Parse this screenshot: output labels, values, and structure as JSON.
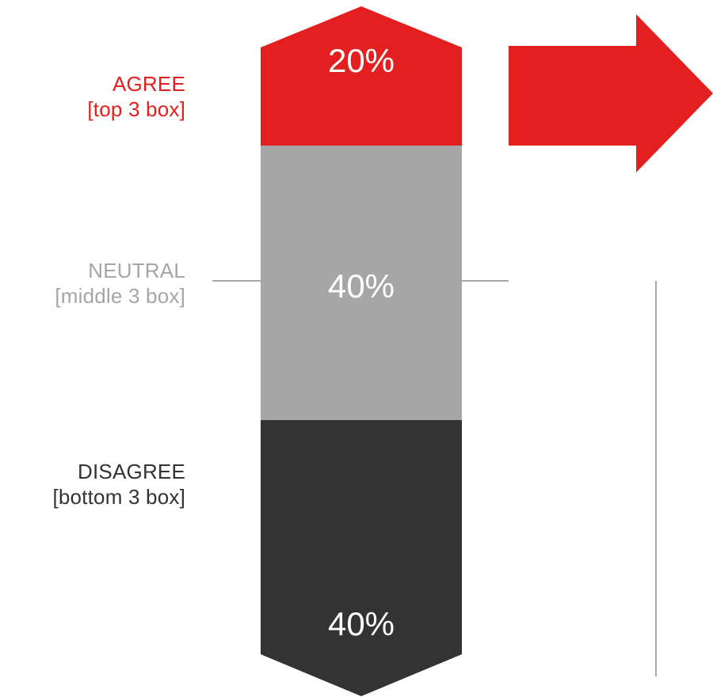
{
  "colors": {
    "agree": "#e31f1f",
    "neutral": "#a6a6a6",
    "disagree": "#333333",
    "guide_line": "#aaaaaa",
    "value_text": "#ffffff"
  },
  "chart_data": {
    "type": "bar",
    "orientation": "vertical-stacked",
    "segments": [
      {
        "name": "AGREE",
        "sublabel": "[top 3 box]",
        "value": 20,
        "display": "20%"
      },
      {
        "name": "NEUTRAL",
        "sublabel": "[middle 3 box]",
        "value": 40,
        "display": "40%"
      },
      {
        "name": "DISAGREE",
        "sublabel": "[bottom 3 box]",
        "value": 40,
        "display": "40%"
      }
    ]
  },
  "labels": {
    "agree": {
      "title": "AGREE",
      "sub": "[top 3 box]"
    },
    "neutral": {
      "title": "NEUTRAL",
      "sub": "[middle 3 box]"
    },
    "disagree": {
      "title": "DISAGREE",
      "sub": "[bottom 3 box]"
    }
  },
  "values": {
    "agree": "20%",
    "neutral": "40%",
    "disagree": "40%"
  }
}
